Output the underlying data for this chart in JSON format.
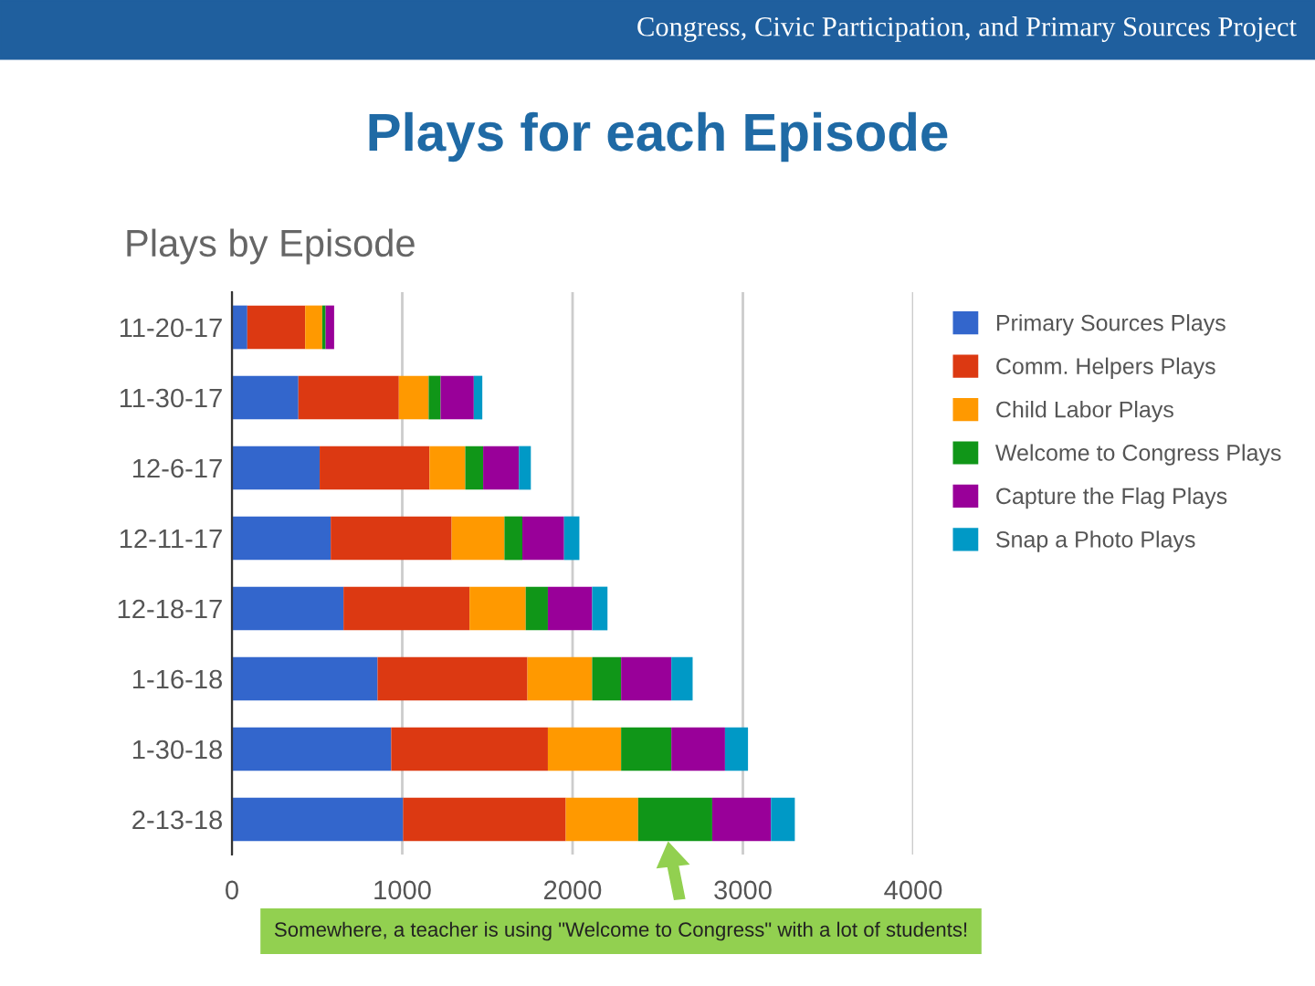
{
  "chart_data": {
    "type": "bar",
    "orientation": "horizontal",
    "stacked": true,
    "title": "Plays for each Episode",
    "subtitle": "Plays by Episode",
    "categories": [
      "11-20-17",
      "11-30-17",
      "12-6-17",
      "12-11-17",
      "12-18-17",
      "1-16-18",
      "1-30-18",
      "2-13-18"
    ],
    "series": [
      {
        "name": "Primary Sources Plays",
        "color": "#3366cc",
        "values": [
          90,
          390,
          515,
          580,
          655,
          855,
          935,
          1005
        ]
      },
      {
        "name": "Comm. Helpers Plays",
        "color": "#dc3912",
        "values": [
          340,
          590,
          645,
          710,
          740,
          880,
          920,
          955
        ]
      },
      {
        "name": "Child Labor Plays",
        "color": "#ff9900",
        "values": [
          100,
          175,
          210,
          310,
          330,
          380,
          430,
          425
        ]
      },
      {
        "name": "Welcome to Congress Plays",
        "color": "#109618",
        "values": [
          20,
          70,
          105,
          105,
          130,
          170,
          295,
          435
        ]
      },
      {
        "name": "Capture the Flag Plays",
        "color": "#990099",
        "values": [
          50,
          195,
          210,
          245,
          260,
          295,
          315,
          345
        ]
      },
      {
        "name": "Snap a Photo Plays",
        "color": "#0099c6",
        "values": [
          null,
          50,
          70,
          90,
          90,
          125,
          135,
          140
        ]
      }
    ],
    "xlim": [
      0,
      4000
    ],
    "xticks": [
      0,
      1000,
      2000,
      3000,
      4000
    ],
    "grid": "x",
    "legend": "right",
    "annotations": [
      "Congress, Civic Participation, and Primary Sources Project",
      "Somewhere, a teacher is using \"Welcome to Congress\" with a lot of students!"
    ]
  }
}
